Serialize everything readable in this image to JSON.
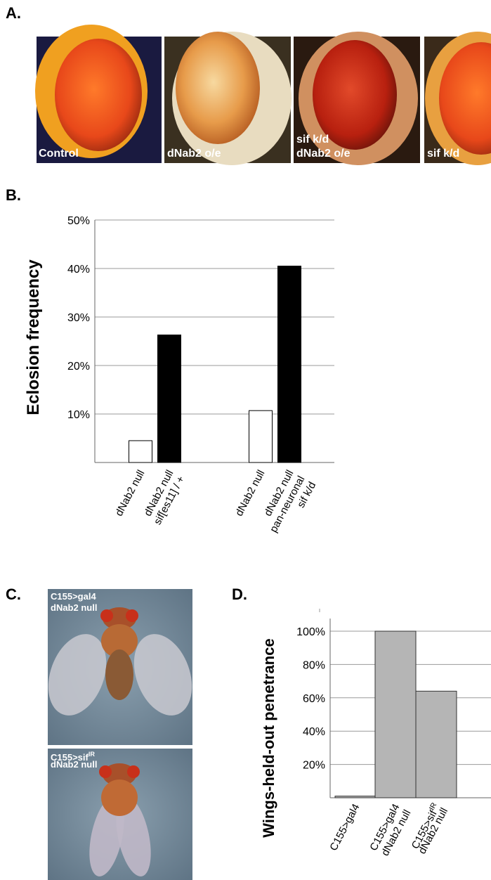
{
  "panels": {
    "a": {
      "label": "A.",
      "captions": [
        [
          "Control"
        ],
        [
          "dNab2 o/e"
        ],
        [
          "sif k/d",
          "dNab2 o/e"
        ],
        [
          "sif k/d"
        ]
      ]
    },
    "b": {
      "label": "B."
    },
    "c": {
      "label": "C.",
      "captions": [
        [
          "C155>gal4",
          "dNab2 null"
        ],
        [
          {
            "text": "C155>sif",
            "sup": "IR"
          },
          "dNab2 null"
        ]
      ]
    },
    "d": {
      "label": "D."
    }
  },
  "chart_data": [
    {
      "type": "bar",
      "y_label": "Eclosion frequency",
      "categories": [
        [
          "dNab2 null"
        ],
        [
          "dNab2 null",
          "sif[es11] / +"
        ],
        [
          "dNab2 null"
        ],
        [
          "dNab2 null",
          "pan-neuronal",
          "sif k/d"
        ]
      ],
      "values": [
        4.5,
        26.3,
        10.7,
        40.5
      ],
      "colors": [
        "#ffffff",
        "#000000",
        "#ffffff",
        "#000000"
      ],
      "ylim": [
        0,
        50
      ],
      "yticks": [
        {
          "value": 10,
          "label": "10%"
        },
        {
          "value": 20,
          "label": "20%"
        },
        {
          "value": 30,
          "label": "30%"
        },
        {
          "value": 40,
          "label": "40%"
        },
        {
          "value": 50,
          "label": "50%"
        }
      ],
      "grid": true
    },
    {
      "type": "bar",
      "y_label": "Wings-held-out penetrance",
      "categories": [
        [
          "C155>gal4"
        ],
        [
          "C155>gal4",
          "dNab2 null"
        ],
        [
          {
            "text": "C155>sif",
            "sup": "IR"
          },
          "dNab2 null"
        ]
      ],
      "values": [
        1,
        100,
        64
      ],
      "colors": [
        "#b5b5b5",
        "#b5b5b5",
        "#b5b5b5"
      ],
      "ylim": [
        0,
        100
      ],
      "yticks": [
        {
          "value": 20,
          "label": "20%"
        },
        {
          "value": 40,
          "label": "40%"
        },
        {
          "value": 60,
          "label": "60%"
        },
        {
          "value": 80,
          "label": "80%"
        },
        {
          "value": 100,
          "label": "100%"
        }
      ],
      "grid": true
    }
  ]
}
